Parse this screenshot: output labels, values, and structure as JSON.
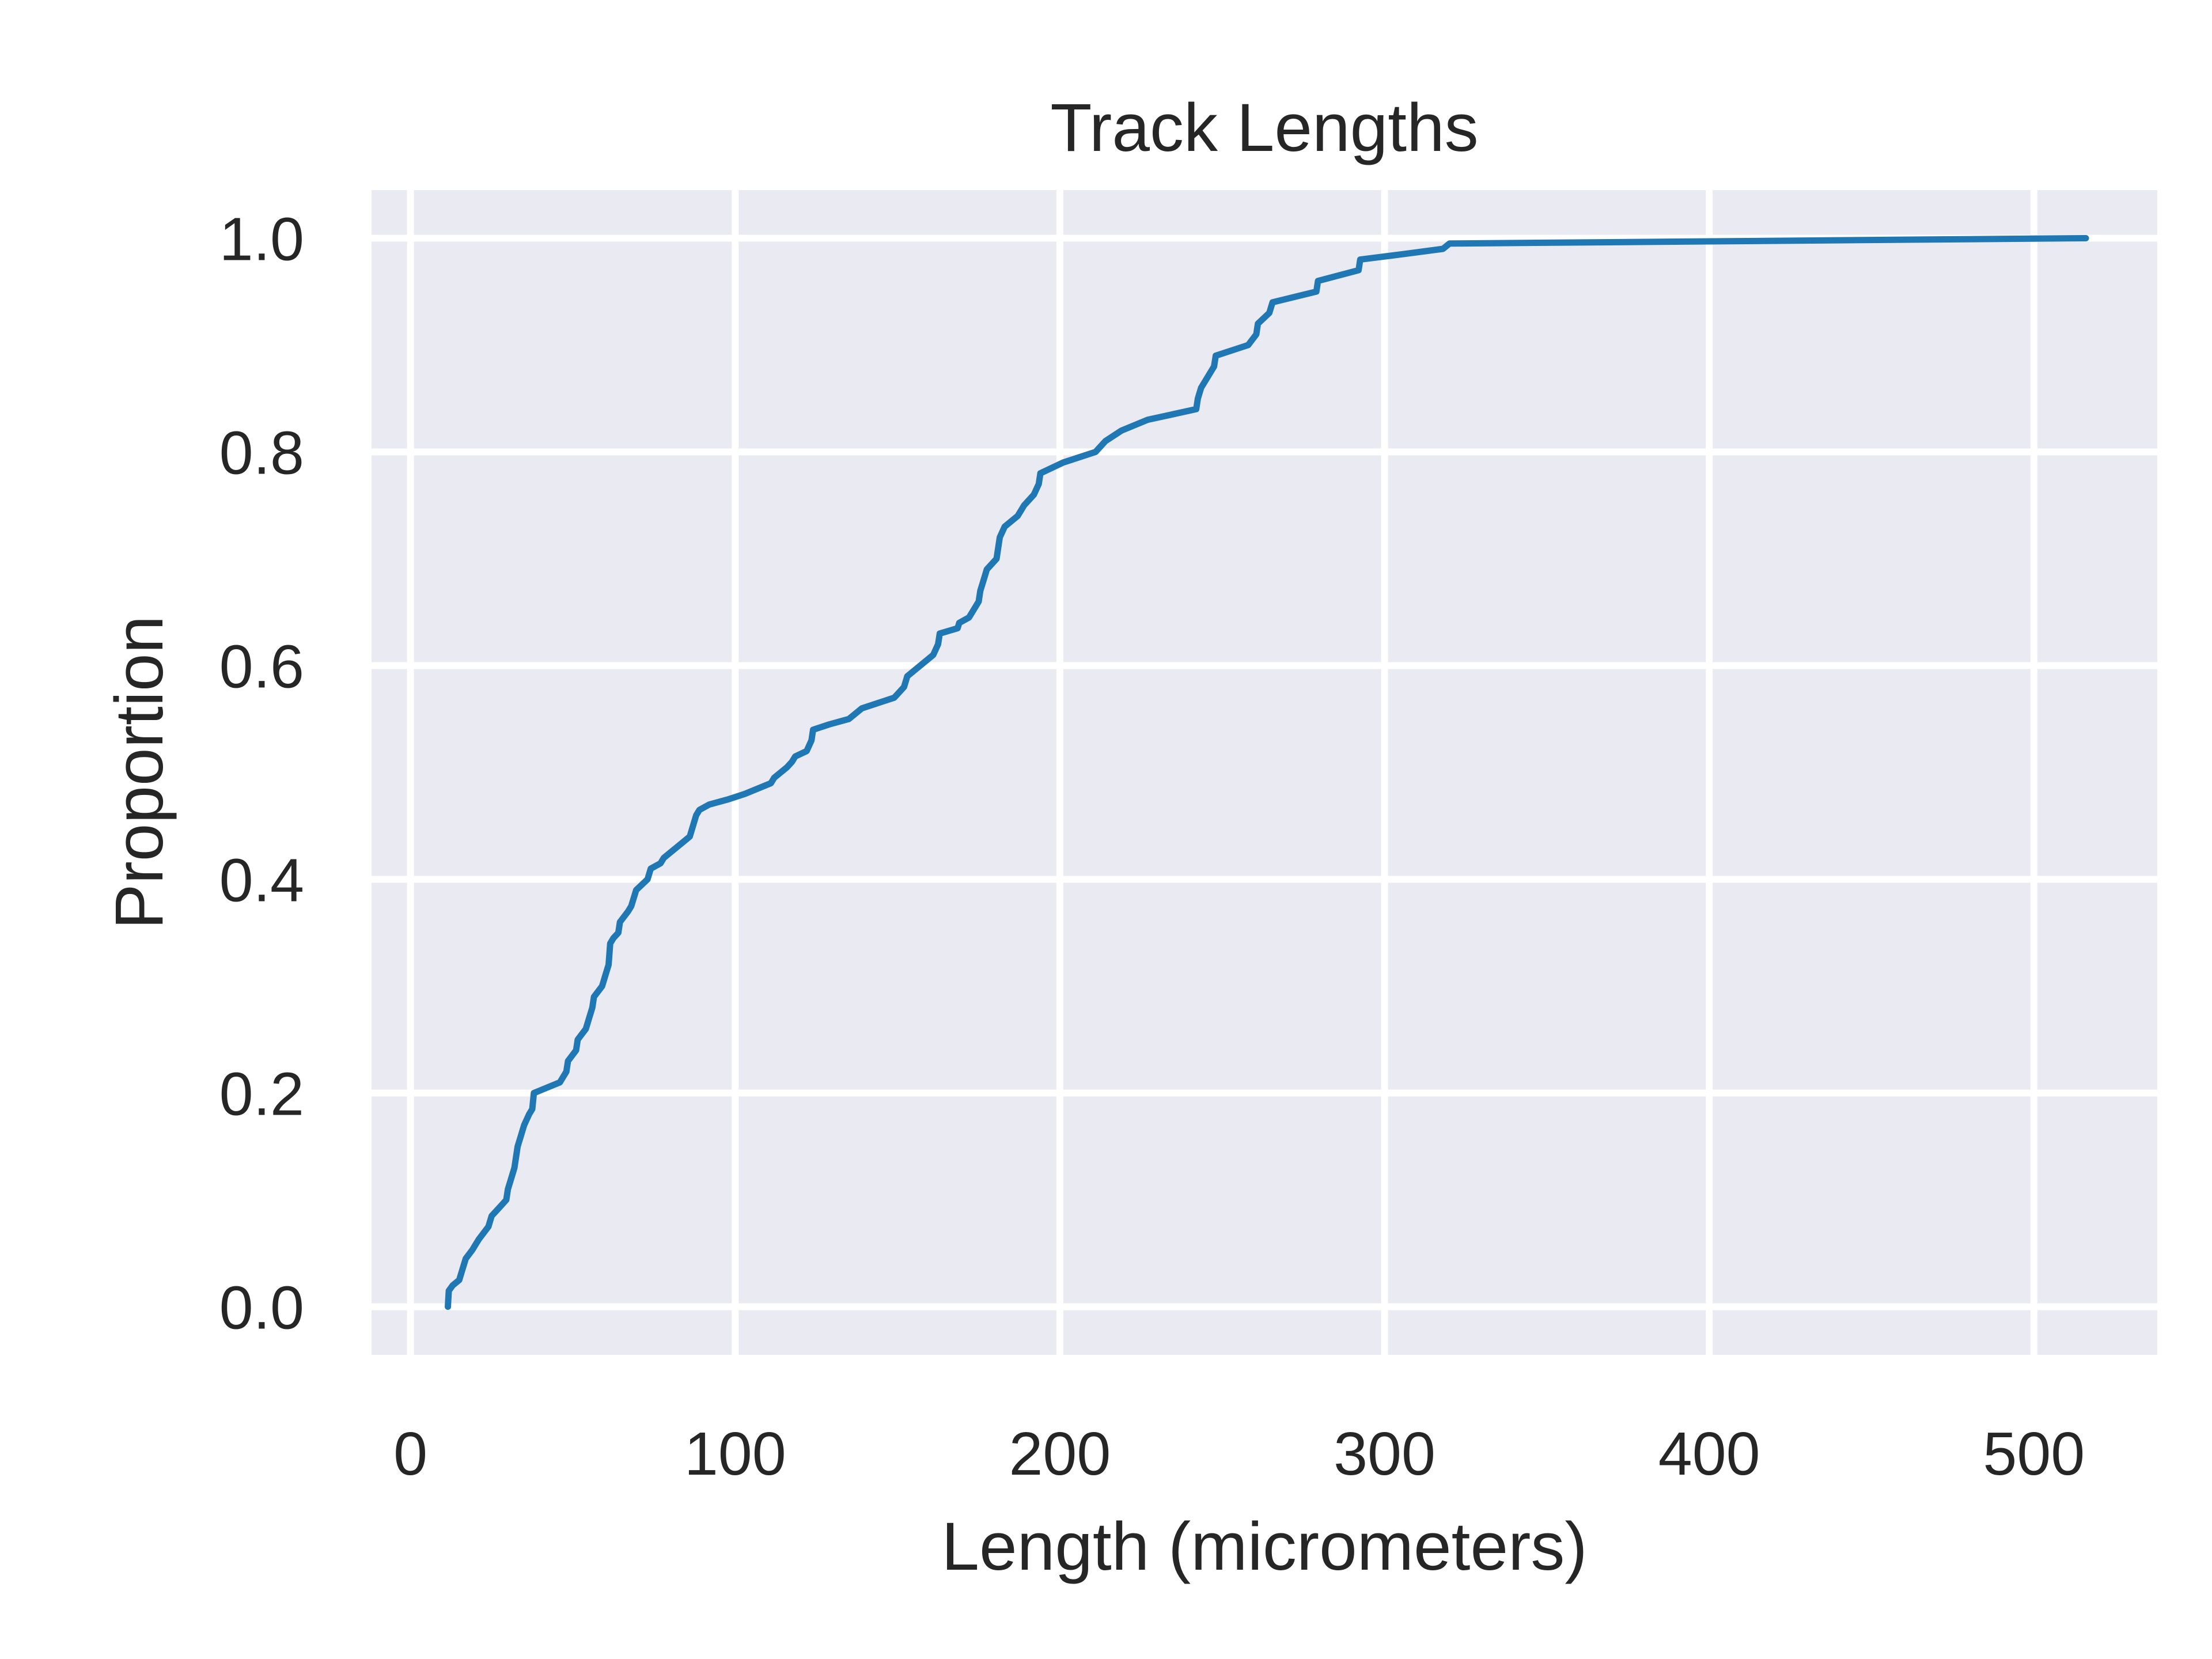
{
  "chart_data": {
    "type": "line",
    "title": "Track Lengths",
    "xlabel": "Length (micrometers)",
    "ylabel": "Proportion",
    "xlim": [
      -12,
      538
    ],
    "ylim": [
      -0.045,
      1.045
    ],
    "xticks": [
      0,
      100,
      200,
      300,
      400,
      500
    ],
    "xtick_labels": [
      "0",
      "100",
      "200",
      "300",
      "400",
      "500"
    ],
    "yticks": [
      0.0,
      0.2,
      0.4,
      0.6,
      0.8,
      1.0
    ],
    "ytick_labels": [
      "0.0",
      "0.2",
      "0.4",
      "0.6",
      "0.8",
      "1.0"
    ],
    "grid": true,
    "background": "#eaeaf2",
    "line_color": "#1f77b4",
    "series": [
      {
        "x": [
          11.5,
          11.8,
          13,
          15,
          16,
          17,
          19,
          21,
          24,
          25,
          26.5,
          28,
          29.5,
          30,
          31,
          32,
          33,
          34,
          35,
          36.5,
          37.5,
          38,
          42,
          46,
          48,
          48.5,
          51,
          51.5,
          54,
          55,
          56,
          56.5,
          59,
          60,
          61,
          61.5,
          62.5,
          64,
          64.5,
          67,
          68,
          69.5,
          73,
          73.5,
          74,
          77,
          78,
          80,
          82,
          84,
          86,
          87,
          88,
          89,
          92,
          98,
          103,
          111,
          112,
          114,
          116,
          117.5,
          118.5,
          122,
          123.5,
          124,
          129,
          135,
          139,
          149,
          152,
          153,
          157,
          161,
          162.5,
          163,
          168.5,
          169,
          172,
          174,
          175,
          175.5,
          176.5,
          177.5,
          180.5,
          181,
          181.5,
          183,
          187,
          189,
          192,
          193.5,
          194,
          201,
          211,
          214,
          219,
          227,
          242,
          242.5,
          243.5,
          245.5,
          247.5,
          248,
          258,
          260.5,
          261,
          264.5,
          265.5,
          279,
          279.5,
          292,
          292.5,
          305.5,
          318,
          320,
          516
        ],
        "y": [
          0.0,
          0.015,
          0.02,
          0.025,
          0.035,
          0.045,
          0.053,
          0.063,
          0.075,
          0.085,
          0.09,
          0.095,
          0.1,
          0.11,
          0.12,
          0.13,
          0.15,
          0.16,
          0.17,
          0.18,
          0.185,
          0.2,
          0.205,
          0.21,
          0.22,
          0.23,
          0.24,
          0.25,
          0.26,
          0.27,
          0.28,
          0.29,
          0.3,
          0.31,
          0.32,
          0.34,
          0.345,
          0.35,
          0.36,
          0.37,
          0.375,
          0.39,
          0.4,
          0.405,
          0.41,
          0.415,
          0.42,
          0.425,
          0.43,
          0.435,
          0.44,
          0.45,
          0.46,
          0.465,
          0.47,
          0.475,
          0.48,
          0.49,
          0.495,
          0.5,
          0.505,
          0.51,
          0.515,
          0.52,
          0.53,
          0.54,
          0.545,
          0.55,
          0.56,
          0.57,
          0.58,
          0.59,
          0.6,
          0.61,
          0.62,
          0.63,
          0.635,
          0.64,
          0.645,
          0.655,
          0.66,
          0.67,
          0.68,
          0.69,
          0.7,
          0.71,
          0.72,
          0.73,
          0.74,
          0.75,
          0.76,
          0.77,
          0.78,
          0.79,
          0.8,
          0.81,
          0.82,
          0.83,
          0.84,
          0.85,
          0.86,
          0.87,
          0.88,
          0.89,
          0.9,
          0.91,
          0.92,
          0.93,
          0.94,
          0.95,
          0.96,
          0.97,
          0.98,
          0.985,
          0.99,
          0.995,
          1.0
        ]
      }
    ]
  }
}
